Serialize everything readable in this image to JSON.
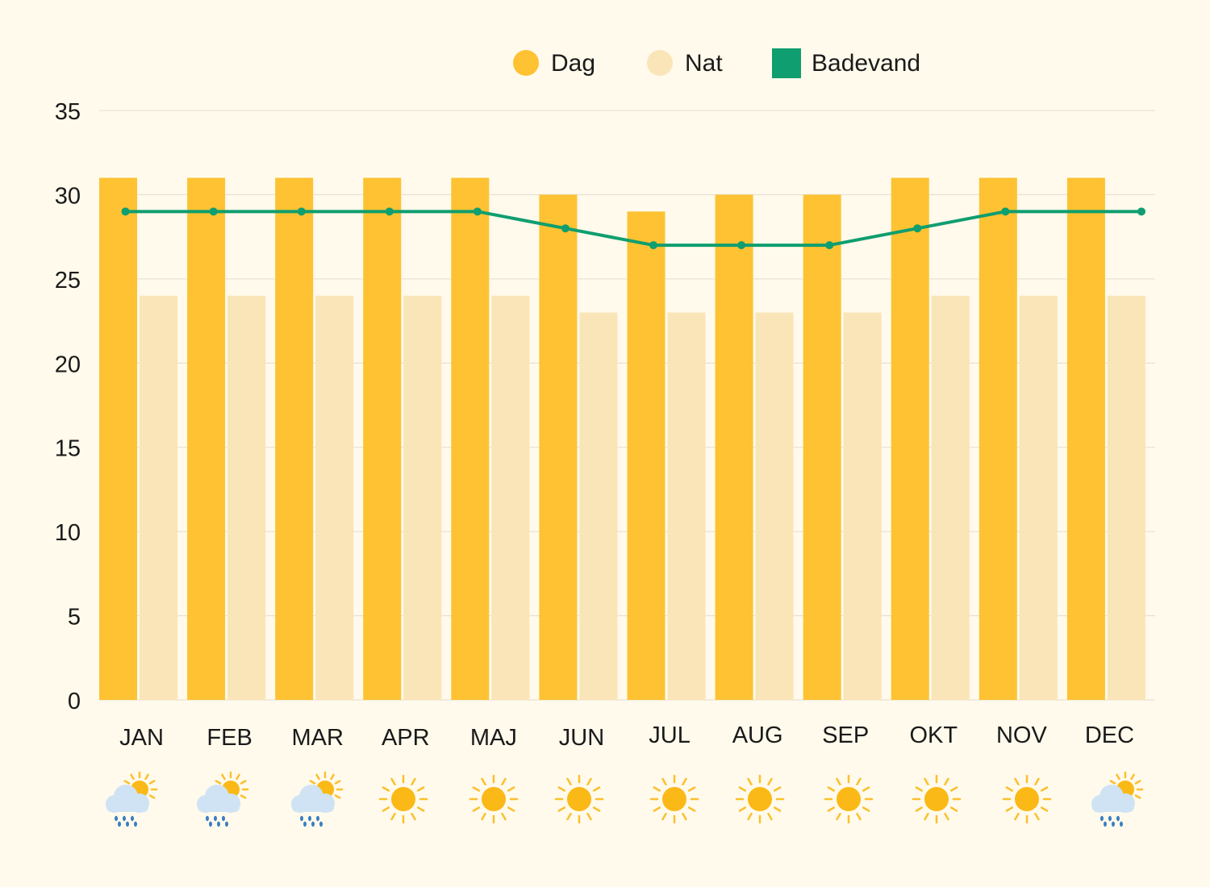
{
  "chart_data": {
    "type": "bar",
    "categories": [
      "JAN",
      "FEB",
      "MAR",
      "APR",
      "MAJ",
      "JUN",
      "JUL",
      "AUG",
      "SEP",
      "OKT",
      "NOV",
      "DEC"
    ],
    "series": [
      {
        "name": "Dag",
        "type": "bar",
        "color": "#fec232",
        "values": [
          31,
          31,
          31,
          31,
          31,
          30,
          29,
          30,
          30,
          31,
          31,
          31
        ]
      },
      {
        "name": "Nat",
        "type": "bar",
        "color": "#f9e5b8",
        "values": [
          24,
          24,
          24,
          24,
          24,
          23,
          23,
          23,
          23,
          24,
          24,
          24
        ]
      },
      {
        "name": "Badevand",
        "type": "line",
        "color": "#0f9e6f",
        "values": [
          29,
          29,
          29,
          29,
          29,
          28,
          27,
          27,
          27,
          28,
          29,
          29
        ]
      }
    ],
    "yticks": [
      0,
      5,
      10,
      15,
      20,
      25,
      30,
      35
    ],
    "ylim": [
      0,
      35
    ],
    "grid": true,
    "legend_position": "top",
    "weather_icons": [
      "sun-rain-icon",
      "sun-rain-icon",
      "sun-rain-icon",
      "sun-icon",
      "sun-icon",
      "sun-icon",
      "sun-icon",
      "sun-icon",
      "sun-icon",
      "sun-icon",
      "sun-icon",
      "sun-rain-icon"
    ]
  },
  "colors": {
    "background": "#fffaec",
    "grid": "#e3ddcf",
    "axis_text": "#1a1a1a",
    "sun": "#fbb917",
    "sun_ray": "#fbc02d",
    "cloud": "#cfe3f4",
    "rain": "#3b7ec2"
  }
}
